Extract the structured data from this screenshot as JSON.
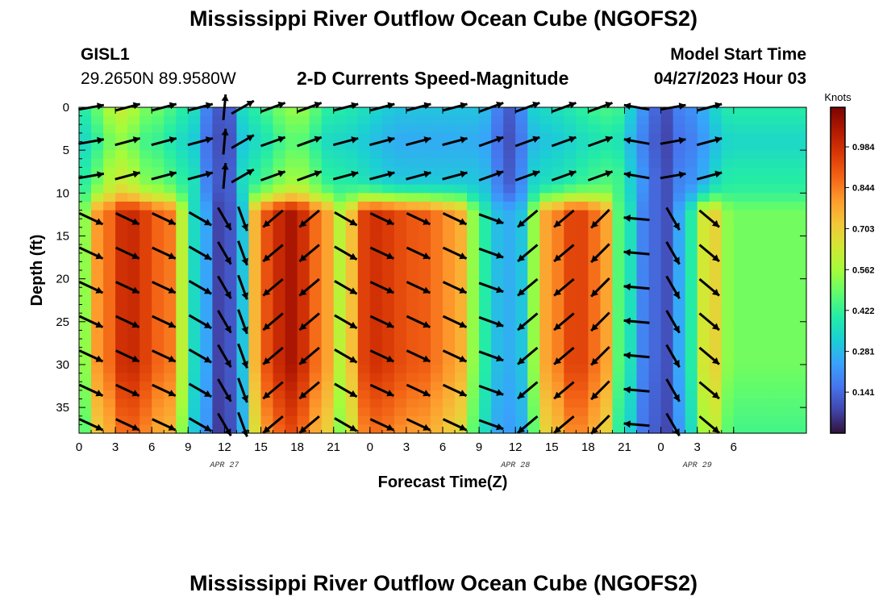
{
  "header": {
    "title": "Mississippi River Outflow Ocean Cube (NGOFS2)",
    "station_id": "GISL1",
    "station_coords": "29.2650N  89.9580W",
    "subtitle": "2-D Currents Speed-Magnitude",
    "model_start_label": "Model Start Time",
    "model_start_value": "04/27/2023 Hour 03"
  },
  "footer": {
    "title": "Mississippi River Outflow Ocean Cube (NGOFS2)"
  },
  "chart_data": {
    "type": "heatmap",
    "xlabel": "Forecast Time(Z)",
    "ylabel": "Depth (ft)",
    "x_unit_hours": [
      0,
      60
    ],
    "ylim": [
      0,
      38
    ],
    "y_inverted": true,
    "x_ticks": [
      {
        "hour": 0,
        "label": "0"
      },
      {
        "hour": 3,
        "label": "3"
      },
      {
        "hour": 6,
        "label": "6"
      },
      {
        "hour": 9,
        "label": "9"
      },
      {
        "hour": 12,
        "label": "12"
      },
      {
        "hour": 15,
        "label": "15"
      },
      {
        "hour": 18,
        "label": "18"
      },
      {
        "hour": 21,
        "label": "21"
      },
      {
        "hour": 24,
        "label": "0"
      },
      {
        "hour": 27,
        "label": "3"
      },
      {
        "hour": 30,
        "label": "6"
      },
      {
        "hour": 33,
        "label": "9"
      },
      {
        "hour": 36,
        "label": "12"
      },
      {
        "hour": 39,
        "label": "15"
      },
      {
        "hour": 42,
        "label": "18"
      },
      {
        "hour": 45,
        "label": "21"
      },
      {
        "hour": 48,
        "label": "0"
      },
      {
        "hour": 51,
        "label": "3"
      },
      {
        "hour": 54,
        "label": "6"
      }
    ],
    "date_labels": [
      {
        "hour": 12,
        "label": "APR 27"
      },
      {
        "hour": 36,
        "label": "APR 28"
      },
      {
        "hour": 51,
        "label": "APR 29"
      }
    ],
    "y_ticks": [
      0,
      5,
      10,
      15,
      20,
      25,
      30,
      35
    ],
    "colorbar": {
      "unit": "Knots",
      "range": [
        0,
        1.12
      ],
      "ticks": [
        {
          "value": 0.141,
          "label": "0.141"
        },
        {
          "value": 0.281,
          "label": "0.281"
        },
        {
          "value": 0.422,
          "label": "0.422"
        },
        {
          "value": 0.562,
          "label": "0.562"
        },
        {
          "value": 0.703,
          "label": "0.703"
        },
        {
          "value": 0.844,
          "label": "0.844"
        },
        {
          "value": 0.984,
          "label": "0.984"
        }
      ],
      "colormap": [
        "#30123b",
        "#4145ab",
        "#4675ed",
        "#39a2fc",
        "#1bcfd4",
        "#24eca6",
        "#61fc6c",
        "#a4fc3b",
        "#d1e834",
        "#f3c63a",
        "#fe9b2d",
        "#f36315",
        "#d93806",
        "#b11901",
        "#7a0402"
      ]
    },
    "speed_knots_deep_layer": [
      {
        "hour": 0,
        "value": 0.45
      },
      {
        "hour": 1.5,
        "value": 0.8
      },
      {
        "hour": 4,
        "value": 1.0
      },
      {
        "hour": 7.5,
        "value": 0.85
      },
      {
        "hour": 9.5,
        "value": 0.35
      },
      {
        "hour": 12,
        "value": 0.05
      },
      {
        "hour": 13.5,
        "value": 0.3
      },
      {
        "hour": 15,
        "value": 0.9
      },
      {
        "hour": 17.5,
        "value": 1.05
      },
      {
        "hour": 20,
        "value": 0.85
      },
      {
        "hour": 21.5,
        "value": 0.6
      },
      {
        "hour": 24,
        "value": 0.98
      },
      {
        "hour": 28,
        "value": 0.9
      },
      {
        "hour": 31,
        "value": 0.8
      },
      {
        "hour": 33.5,
        "value": 0.4
      },
      {
        "hour": 35,
        "value": 0.25
      },
      {
        "hour": 36.5,
        "value": 0.3
      },
      {
        "hour": 38.5,
        "value": 0.78
      },
      {
        "hour": 41,
        "value": 0.95
      },
      {
        "hour": 43,
        "value": 0.85
      },
      {
        "hour": 45,
        "value": 0.4
      },
      {
        "hour": 47,
        "value": 0.15
      },
      {
        "hour": 48.5,
        "value": 0.1
      },
      {
        "hour": 50.5,
        "value": 0.4
      },
      {
        "hour": 52,
        "value": 0.72
      },
      {
        "hour": 54,
        "value": 0.5
      }
    ],
    "speed_knots_surface_layer": [
      {
        "hour": 0,
        "value": 0.4
      },
      {
        "hour": 3.5,
        "value": 0.62
      },
      {
        "hour": 6,
        "value": 0.5
      },
      {
        "hour": 9,
        "value": 0.4
      },
      {
        "hour": 11,
        "value": 0.15
      },
      {
        "hour": 12,
        "value": 0.08
      },
      {
        "hour": 14,
        "value": 0.4
      },
      {
        "hour": 18,
        "value": 0.55
      },
      {
        "hour": 21,
        "value": 0.4
      },
      {
        "hour": 27,
        "value": 0.3
      },
      {
        "hour": 33,
        "value": 0.3
      },
      {
        "hour": 35.5,
        "value": 0.12
      },
      {
        "hour": 38,
        "value": 0.35
      },
      {
        "hour": 44,
        "value": 0.45
      },
      {
        "hour": 47,
        "value": 0.2
      },
      {
        "hour": 48,
        "value": 0.08
      },
      {
        "hour": 50,
        "value": 0.2
      },
      {
        "hour": 54,
        "value": 0.4
      }
    ],
    "vector_columns": [
      {
        "hour": 1,
        "direction_deg_surface": 10,
        "direction_deg_deep": -25
      },
      {
        "hour": 4,
        "direction_deg_surface": 15,
        "direction_deg_deep": -25
      },
      {
        "hour": 7,
        "direction_deg_surface": 15,
        "direction_deg_deep": -25
      },
      {
        "hour": 10,
        "direction_deg_surface": 15,
        "direction_deg_deep": -30
      },
      {
        "hour": 12,
        "direction_deg_surface": 85,
        "direction_deg_deep": -60
      },
      {
        "hour": 13.5,
        "direction_deg_surface": 30,
        "direction_deg_deep": -70
      },
      {
        "hour": 16,
        "direction_deg_surface": 20,
        "direction_deg_deep": -140
      },
      {
        "hour": 19,
        "direction_deg_surface": 20,
        "direction_deg_deep": -140
      },
      {
        "hour": 22,
        "direction_deg_surface": 15,
        "direction_deg_deep": -30
      },
      {
        "hour": 25,
        "direction_deg_surface": 15,
        "direction_deg_deep": -25
      },
      {
        "hour": 28,
        "direction_deg_surface": 15,
        "direction_deg_deep": -25
      },
      {
        "hour": 31,
        "direction_deg_surface": 15,
        "direction_deg_deep": -25
      },
      {
        "hour": 34,
        "direction_deg_surface": 20,
        "direction_deg_deep": -20
      },
      {
        "hour": 37,
        "direction_deg_surface": 20,
        "direction_deg_deep": -140
      },
      {
        "hour": 40,
        "direction_deg_surface": 20,
        "direction_deg_deep": -140
      },
      {
        "hour": 43,
        "direction_deg_surface": 20,
        "direction_deg_deep": -135
      },
      {
        "hour": 46,
        "direction_deg_surface": 170,
        "direction_deg_deep": 175
      },
      {
        "hour": 49,
        "direction_deg_surface": 10,
        "direction_deg_deep": -60
      },
      {
        "hour": 52,
        "direction_deg_surface": 15,
        "direction_deg_deep": -40
      }
    ],
    "grid": false,
    "legend": "colorbar-right"
  }
}
